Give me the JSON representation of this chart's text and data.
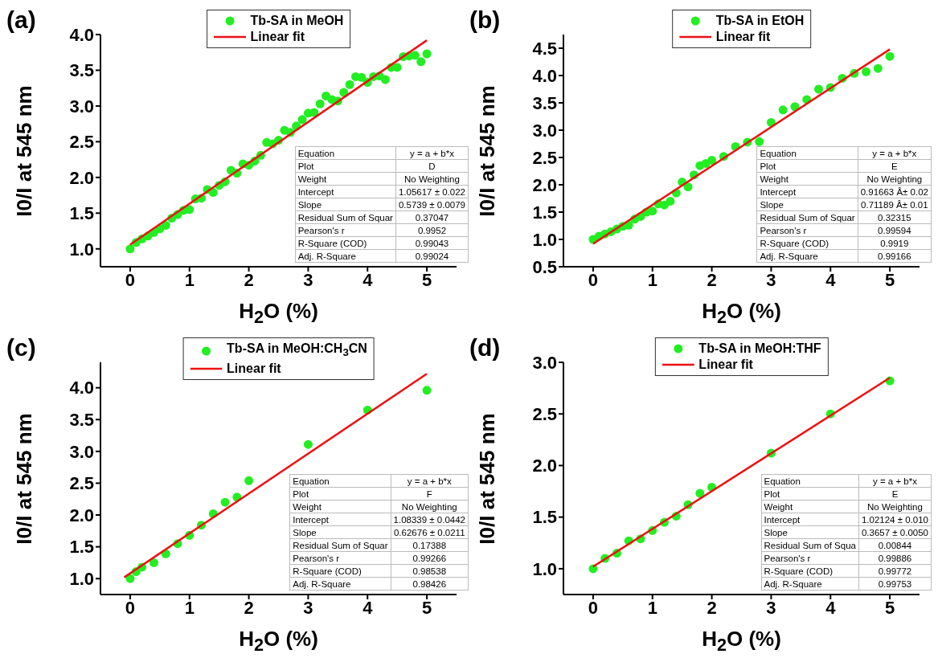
{
  "chart_data": [
    {
      "type": "scatter",
      "title": "(a)",
      "xlabel": "H$_{2}$O (%)",
      "ylabel": "I0/I at 545 nm",
      "xlim": [
        -0.5,
        5.5
      ],
      "ylim": [
        0.75,
        4.0
      ],
      "xticks": [
        0,
        1,
        2,
        3,
        4,
        5
      ],
      "yticks": [
        {
          "value": 1,
          "label": "1.0"
        },
        {
          "value": 1.5,
          "label": "1.5"
        },
        {
          "value": 2,
          "label": "2.0"
        },
        {
          "value": 2.5,
          "label": "2.5"
        },
        {
          "value": 3,
          "label": "3.0"
        },
        {
          "value": 3.5,
          "label": "3.5"
        },
        {
          "value": 4,
          "label": "4.0"
        }
      ],
      "legend": "top",
      "marker": "circle",
      "x": [
        0,
        0.1,
        0.2,
        0.3,
        0.4,
        0.5,
        0.6,
        0.7,
        0.8,
        0.9,
        1.0,
        1.1,
        1.2,
        1.3,
        1.4,
        1.5,
        1.6,
        1.7,
        1.8,
        1.9,
        2.0,
        2.1,
        2.2,
        2.3,
        2.4,
        2.5,
        2.6,
        2.7,
        2.8,
        2.9,
        3.0,
        3.1,
        3.2,
        3.3,
        3.4,
        3.5,
        3.6,
        3.7,
        3.8,
        3.9,
        4.0,
        4.1,
        4.2,
        4.3,
        4.4,
        4.5,
        4.6,
        4.7,
        4.8,
        4.9,
        5.0
      ],
      "series": [
        {
          "name": "Tb-SA in MeOH",
          "color": "#22ee22",
          "values": [
            1.0,
            1.09,
            1.14,
            1.18,
            1.23,
            1.28,
            1.33,
            1.43,
            1.48,
            1.54,
            1.55,
            1.7,
            1.71,
            1.83,
            1.79,
            1.89,
            1.94,
            2.1,
            2.06,
            2.19,
            2.17,
            2.23,
            2.31,
            2.49,
            2.47,
            2.52,
            2.66,
            2.63,
            2.72,
            2.81,
            2.9,
            2.91,
            3.03,
            3.14,
            3.09,
            3.07,
            3.19,
            3.3,
            3.41,
            3.4,
            3.33,
            3.41,
            3.42,
            3.37,
            3.54,
            3.54,
            3.69,
            3.7,
            3.71,
            3.62,
            3.73
          ]
        },
        {
          "name": "Linear fit",
          "type": "line",
          "marker": "none",
          "color": "#ee1111",
          "x": [
            0,
            5
          ],
          "values": [
            1.06,
            3.92
          ]
        }
      ],
      "annotations": [
        "Equation",
        "y = a + b*x",
        "Plot",
        "D",
        "Weight",
        "No Weighting",
        "Intercept",
        "1.05617 ± 0.022",
        "Slope",
        "0.5739 ± 0.0079",
        "Residual Sum of Squar",
        "0.37047",
        "Pearson's r",
        "0.9952",
        "R-Square (COD)",
        "0.99043",
        "Adj. R-Square",
        "0.99024"
      ]
    },
    {
      "type": "scatter",
      "title": "(b)",
      "xlabel": "H$_{2}$O (%)",
      "ylabel": "I0/I at 545 nm",
      "xlim": [
        -0.5,
        5.5
      ],
      "ylim": [
        0.5,
        4.75
      ],
      "xticks": [
        0,
        1,
        2,
        3,
        4,
        5
      ],
      "yticks": [
        {
          "value": 0.5,
          "label": "0.5"
        },
        {
          "value": 1,
          "label": "1.0"
        },
        {
          "value": 1.5,
          "label": "1.5"
        },
        {
          "value": 2,
          "label": "2.0"
        },
        {
          "value": 2.5,
          "label": "2.5"
        },
        {
          "value": 3,
          "label": "3.0"
        },
        {
          "value": 3.5,
          "label": "3.5"
        },
        {
          "value": 4,
          "label": "4.0"
        },
        {
          "value": 4.5,
          "label": "4.5"
        }
      ],
      "legend": "top",
      "marker": "circle",
      "x": [
        0,
        0.1,
        0.2,
        0.3,
        0.4,
        0.5,
        0.6,
        0.7,
        0.8,
        0.9,
        1.0,
        1.1,
        1.2,
        1.3,
        1.4,
        1.5,
        1.6,
        1.7,
        1.8,
        1.9,
        2.0,
        2.2,
        2.4,
        2.6,
        2.8,
        3.0,
        3.2,
        3.4,
        3.6,
        3.8,
        4.0,
        4.2,
        4.4,
        4.6,
        4.8,
        5.0
      ],
      "series": [
        {
          "name": "Tb-SA in EtOH",
          "color": "#22ee22",
          "values": [
            1.0,
            1.06,
            1.1,
            1.14,
            1.19,
            1.24,
            1.26,
            1.37,
            1.42,
            1.5,
            1.52,
            1.65,
            1.63,
            1.7,
            1.85,
            2.05,
            1.96,
            2.18,
            2.35,
            2.39,
            2.45,
            2.52,
            2.7,
            2.78,
            2.79,
            3.14,
            3.37,
            3.43,
            3.56,
            3.75,
            3.78,
            3.95,
            4.04,
            4.07,
            4.13,
            4.35
          ]
        },
        {
          "name": "Linear fit",
          "type": "line",
          "marker": "none",
          "color": "#ee1111",
          "x": [
            0,
            5
          ],
          "values": [
            0.92,
            4.48
          ]
        }
      ],
      "annotations": [
        "Equation",
        "y = a + b*x",
        "Plot",
        "E",
        "Weight",
        "No Weighting",
        "Intercept",
        "0.91663 Â± 0.02",
        "Slope",
        "0.71189 Â± 0.01",
        "Residual Sum of Squar",
        "0.32315",
        "Pearson's r",
        "0.99594",
        "R-Square (COD)",
        "0.9919",
        "Adj. R-Square",
        "0.99166"
      ]
    },
    {
      "type": "scatter",
      "title": "(c)",
      "xlabel": "H$_{2}$O (%)",
      "ylabel": "I0/I at 545 nm",
      "xlim": [
        -0.5,
        5.5
      ],
      "ylim": [
        0.75,
        4.4
      ],
      "xticks": [
        0,
        1,
        2,
        3,
        4,
        5
      ],
      "yticks": [
        {
          "value": 1,
          "label": "1.0"
        },
        {
          "value": 1.5,
          "label": "1.5"
        },
        {
          "value": 2,
          "label": "2.0"
        },
        {
          "value": 2.5,
          "label": "2.5"
        },
        {
          "value": 3,
          "label": "3.0"
        },
        {
          "value": 3.5,
          "label": "3.5"
        },
        {
          "value": 4,
          "label": "4.0"
        }
      ],
      "legend": "top",
      "marker": "circle",
      "x": [
        0,
        0.1,
        0.2,
        0.4,
        0.6,
        0.8,
        1.0,
        1.2,
        1.4,
        1.6,
        1.8,
        2.0,
        3.0,
        4.0,
        5.0
      ],
      "series": [
        {
          "name": "Tb-SA in MeOH:CH$_{3}$CN",
          "color": "#22ee22",
          "values": [
            1.0,
            1.11,
            1.18,
            1.25,
            1.39,
            1.55,
            1.68,
            1.84,
            2.02,
            2.2,
            2.28,
            2.54,
            3.11,
            3.65,
            3.96
          ]
        },
        {
          "name": "Linear fit",
          "type": "line",
          "marker": "none",
          "color": "#ee1111",
          "x": [
            -0.1,
            5
          ],
          "values": [
            1.02,
            4.22
          ]
        }
      ],
      "annotations": [
        "Equation",
        "y = a + b*x",
        "Plot",
        "F",
        "Weight",
        "No Weighting",
        "Intercept",
        "1.08339 ± 0.0442",
        "Slope",
        "0.62676 ± 0.0211",
        "Residual Sum of Squar",
        "0.17388",
        "Pearson's r",
        "0.99266",
        "R-Square (COD)",
        "0.98538",
        "Adj. R-Square",
        "0.98426"
      ]
    },
    {
      "type": "scatter",
      "title": "(d)",
      "xlabel": "H$_{2}$O (%)",
      "ylabel": "I0/I at 545 nm",
      "xlim": [
        -0.5,
        5.5
      ],
      "ylim": [
        0.75,
        3.0
      ],
      "xticks": [
        0,
        1,
        2,
        3,
        4,
        5
      ],
      "yticks": [
        {
          "value": 1,
          "label": "1.0"
        },
        {
          "value": 1.5,
          "label": "1.5"
        },
        {
          "value": 2,
          "label": "2.0"
        },
        {
          "value": 2.5,
          "label": "2.5"
        },
        {
          "value": 3,
          "label": "3.0"
        }
      ],
      "legend": "top",
      "marker": "circle",
      "x": [
        0,
        0.2,
        0.4,
        0.6,
        0.8,
        1.0,
        1.2,
        1.4,
        1.6,
        1.8,
        2.0,
        3.0,
        4.0,
        5.0
      ],
      "series": [
        {
          "name": "Tb-SA in MeOH:THF",
          "color": "#22ee22",
          "values": [
            1.0,
            1.1,
            1.15,
            1.27,
            1.29,
            1.37,
            1.45,
            1.51,
            1.62,
            1.73,
            1.79,
            2.12,
            2.5,
            2.82
          ]
        },
        {
          "name": "Linear fit",
          "type": "line",
          "marker": "none",
          "color": "#ee1111",
          "x": [
            0,
            5
          ],
          "values": [
            1.02,
            2.85
          ]
        }
      ],
      "annotations": [
        "Equation",
        "y = a + b*x",
        "Plot",
        "E",
        "Weight",
        "No Weighting",
        "Intercept",
        "1.02124 ± 0.010",
        "Slope",
        "0.3657 ± 0.0050",
        "Residual Sum of Squa",
        "0.00844",
        "Pearson's r",
        "0.99886",
        "R-Square (COD)",
        "0.99772",
        "Adj. R-Square",
        "0.99753"
      ]
    }
  ]
}
